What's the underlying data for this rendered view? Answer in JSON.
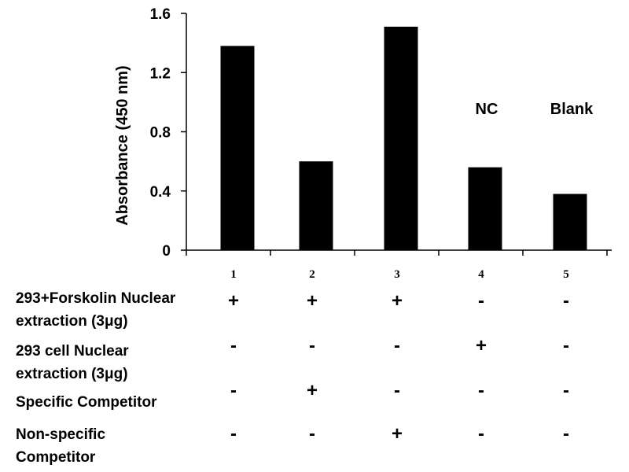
{
  "chart_data": {
    "type": "bar",
    "categories": [
      "1",
      "2",
      "3",
      "4",
      "5"
    ],
    "values": [
      1.38,
      0.6,
      1.51,
      0.56,
      0.38
    ],
    "title": "",
    "xlabel": "",
    "ylabel": "Absorbance (450 nm)",
    "ylim": [
      0,
      1.6
    ],
    "yticks": [
      "0",
      "0.4",
      "0.8",
      "1.2",
      "1.6"
    ],
    "bar_color": "#000000",
    "grid": false,
    "annotations": [
      {
        "category": "4",
        "text": "NC"
      },
      {
        "category": "5",
        "text": "Blank"
      }
    ]
  },
  "conditions": [
    {
      "label_lines": [
        "293+Forskolin Nuclear",
        "extraction (3μg)"
      ],
      "marks": [
        "+",
        "+",
        "+",
        "-",
        "-"
      ]
    },
    {
      "label_lines": [
        "293 cell Nuclear",
        "extraction (3μg)"
      ],
      "marks": [
        "-",
        "-",
        "-",
        "+",
        "-"
      ]
    },
    {
      "label_lines": [
        "Specific Competitor"
      ],
      "marks": [
        "-",
        "+",
        "-",
        "-",
        "-"
      ]
    },
    {
      "label_lines": [
        "Non-specific",
        "Competitor"
      ],
      "marks": [
        "-",
        "-",
        "+",
        "-",
        "-"
      ]
    }
  ]
}
